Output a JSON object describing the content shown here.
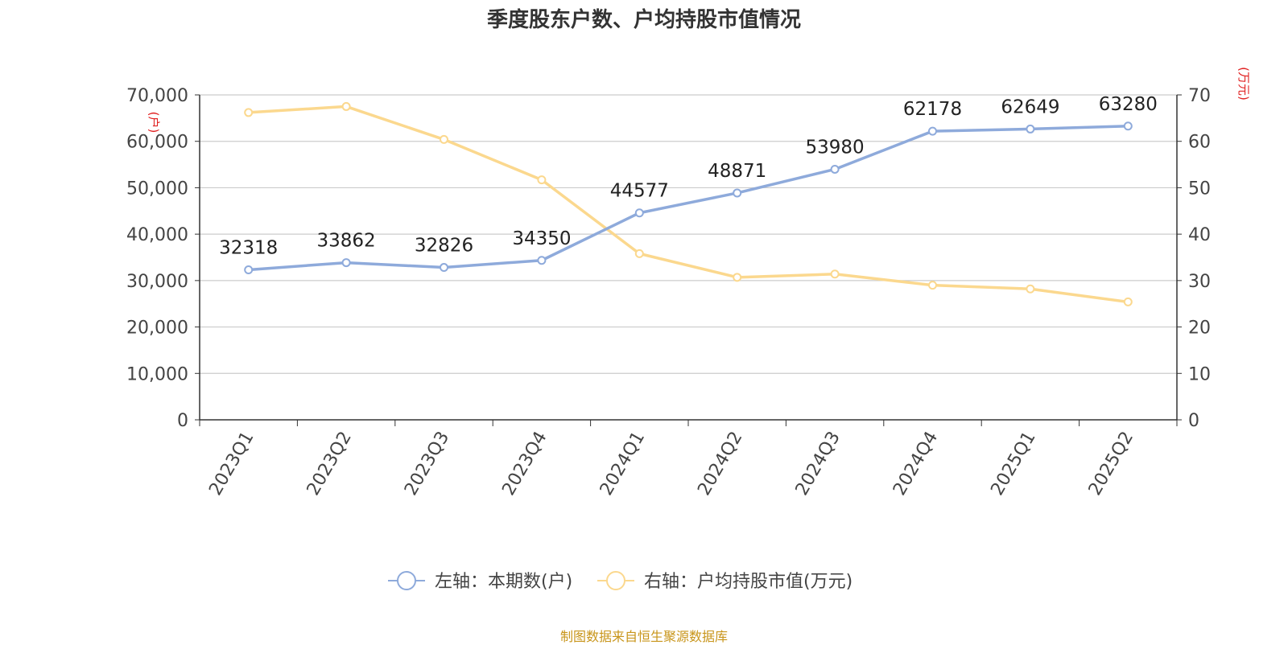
{
  "chart_data": {
    "type": "line",
    "title": "季度股东户数、户均持股市值情况",
    "categories": [
      "2023Q1",
      "2023Q2",
      "2023Q3",
      "2023Q4",
      "2024Q1",
      "2024Q2",
      "2024Q3",
      "2024Q4",
      "2025Q1",
      "2025Q2"
    ],
    "left_axis": {
      "label": "(户)",
      "range": [
        0,
        70000
      ],
      "ticks": [
        "0",
        "10,000",
        "20,000",
        "30,000",
        "40,000",
        "50,000",
        "60,000",
        "70,000"
      ]
    },
    "right_axis": {
      "label": "(万元)",
      "range": [
        0,
        70
      ],
      "ticks": [
        "0",
        "10",
        "20",
        "30",
        "40",
        "50",
        "60",
        "70"
      ]
    },
    "series": [
      {
        "name": "左轴：本期数(户)",
        "axis": "left",
        "color": "#8eaadb",
        "values": [
          32318,
          33862,
          32826,
          34350,
          44577,
          48871,
          53980,
          62178,
          62649,
          63280
        ],
        "labels": [
          "32318",
          "33862",
          "32826",
          "34350",
          "44577",
          "48871",
          "53980",
          "62178",
          "62649",
          "63280"
        ]
      },
      {
        "name": "右轴：户均持股市值(万元)",
        "axis": "right",
        "color": "#fbd88e",
        "values": [
          66.2,
          67.5,
          60.4,
          51.7,
          35.8,
          30.7,
          31.4,
          29.0,
          28.2,
          25.4
        ]
      }
    ],
    "grid": true,
    "legend_position": "bottom-center"
  },
  "source_text": "制图数据来自恒生聚源数据库"
}
